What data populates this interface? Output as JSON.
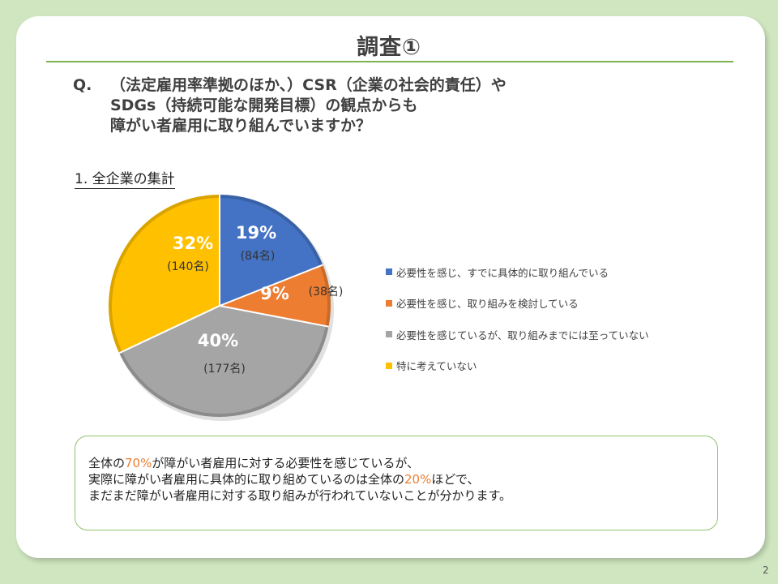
{
  "title": "調査①",
  "question": {
    "prefix": "Q.",
    "lines": [
      "（法定雇用率準拠のほか、）CSR（企業の社会的責任）や",
      "SDGs（持続可能な開発目標）の観点からも",
      "障がい者雇用に取り組んでいますか？"
    ]
  },
  "subheading": "1.  全企業の集計",
  "chart_data": {
    "type": "pie",
    "title": "1.  全企業の集計",
    "slices": [
      {
        "label": "必要性を感じ、すでに具体的に取り組んでいる",
        "percent": 19,
        "percent_label": "19%",
        "count_label": "(84名)",
        "color": "#4472c4"
      },
      {
        "label": "必要性を感じ、取り組みを検討している",
        "percent": 9,
        "percent_label": "9%",
        "count_label": "(38名)",
        "color": "#ed7d31"
      },
      {
        "label": "必要性を感じているが、取り組みまでには至っていない",
        "percent": 40,
        "percent_label": "40%",
        "count_label": "(177名)",
        "color": "#a5a5a5"
      },
      {
        "label": "特に考えていない",
        "percent": 32,
        "percent_label": "32%",
        "count_label": "(140名)",
        "color": "#ffc000"
      }
    ],
    "legend_position": "right"
  },
  "summary": {
    "line1_pre": "全体の",
    "line1_accent": "70%",
    "line1_post": "が障がい者雇用に対する必要性を感じているが、",
    "line2_pre": "実際に障がい者雇用に具体的に取り組めているのは全体の",
    "line2_accent": "20%",
    "line2_post": "ほどで、",
    "line3": "まだまだ障がい者雇用に対する取り組みが行われていないことが分かります。"
  },
  "page_number": "2",
  "colors": {
    "background": "#cfe6c0",
    "title_rule": "#7fb24f",
    "summary_border": "#8fc36a",
    "accent": "#ed7d31"
  }
}
